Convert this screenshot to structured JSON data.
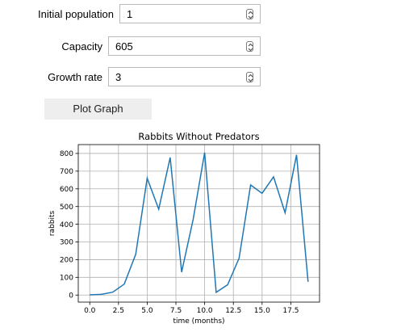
{
  "form": {
    "fields": [
      {
        "label": "Initial population",
        "value": "1"
      },
      {
        "label": "Capacity",
        "value": "605"
      },
      {
        "label": "Growth rate",
        "value": "3"
      }
    ],
    "plot_button_label": "Plot Graph"
  },
  "chart_data": {
    "type": "line",
    "title": "Rabbits Without Predators",
    "xlabel": "time (months)",
    "ylabel": "rabbits",
    "xlim": [
      -1.0,
      20.0
    ],
    "ylim": [
      -40,
      850
    ],
    "grid": true,
    "line_color": "#1f77b4",
    "x_ticks": [
      0.0,
      2.5,
      5.0,
      7.5,
      10.0,
      12.5,
      15.0,
      17.5
    ],
    "x_tick_labels": [
      "0.0",
      "2.5",
      "5.0",
      "7.5",
      "10.0",
      "12.5",
      "15.0",
      "17.5"
    ],
    "y_ticks": [
      0,
      100,
      200,
      300,
      400,
      500,
      600,
      700,
      800
    ],
    "y_tick_labels": [
      "0",
      "100",
      "200",
      "300",
      "400",
      "500",
      "600",
      "700",
      "800"
    ],
    "series": [
      {
        "x": [
          0,
          1,
          2,
          3,
          4,
          5,
          6,
          7,
          8,
          9,
          10,
          11,
          12,
          13,
          14,
          15,
          16,
          17,
          18,
          19
        ],
        "values": [
          1,
          4,
          16,
          62,
          230,
          660,
          485,
          777,
          130,
          428,
          805,
          15,
          58,
          208,
          622,
          575,
          668,
          465,
          792,
          75
        ]
      }
    ]
  }
}
